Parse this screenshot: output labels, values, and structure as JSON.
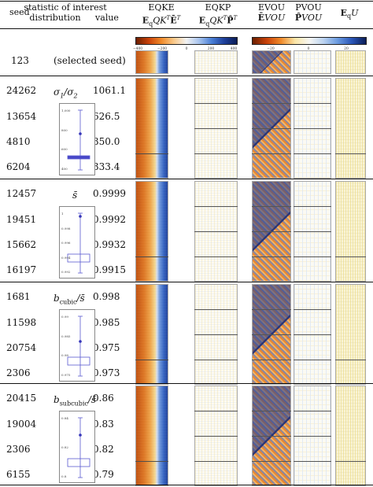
{
  "headers": {
    "seed": "seed",
    "statistic_line1": "statistic of interest",
    "statistic_line2": "distribution",
    "value": "value",
    "eqke_title": "EQKE",
    "eqke_formula": "E_q Q K^T Ē^T",
    "eqkp_title": "EQKP",
    "eqkp_formula": "E_q Q K^T P̂^T",
    "evou_title": "EVOU",
    "evou_formula": "Ē V O U",
    "pvou_title": "PVOU",
    "pvou_formula": "P̂ V O U",
    "equ_title": "E_q U"
  },
  "colorbars": {
    "eqke": {
      "ticks": [
        "−400",
        "−200",
        "0",
        "200",
        "400"
      ]
    },
    "evou": {
      "ticks": [
        "−20",
        "0",
        "20"
      ]
    }
  },
  "selected": {
    "seed": "123",
    "label": "(selected seed)"
  },
  "groups": [
    {
      "stat": "σ1/σ2",
      "stat_base": "σ",
      "stat_sub1": "1",
      "stat_mid": "/σ",
      "stat_sub2": "2",
      "violin_ticks": [
        "1,000",
        "800",
        "600",
        "400"
      ],
      "rows": [
        {
          "seed": "24262",
          "value": "1061.1"
        },
        {
          "seed": "13654",
          "value": "626.5"
        },
        {
          "seed": "4810",
          "value": "350.0"
        },
        {
          "seed": "6204",
          "value": "333.4"
        }
      ]
    },
    {
      "stat": "s̄",
      "violin_ticks": [
        "1",
        "0.998",
        "0.996",
        "0.994",
        "0.992"
      ],
      "rows": [
        {
          "seed": "12457",
          "value": "0.9999"
        },
        {
          "seed": "19451",
          "value": "0.9992"
        },
        {
          "seed": "15662",
          "value": "0.9932"
        },
        {
          "seed": "16197",
          "value": "0.9915"
        }
      ]
    },
    {
      "stat": "b_cubic/s̄",
      "stat_base": "b",
      "stat_sub": "cubic",
      "stat_tail": "/s̄",
      "violin_ticks": [
        "0.99",
        "0.985",
        "0.98",
        "0.975"
      ],
      "rows": [
        {
          "seed": "1681",
          "value": "0.998"
        },
        {
          "seed": "11598",
          "value": "0.985"
        },
        {
          "seed": "20754",
          "value": "0.975"
        },
        {
          "seed": "2306",
          "value": "0.973"
        }
      ]
    },
    {
      "stat": "b_subcubic/s̄",
      "stat_base": "b",
      "stat_sub": "subcubic",
      "stat_tail": "/s̄",
      "violin_ticks": [
        "0.84",
        "0.82",
        "0.8"
      ],
      "rows": [
        {
          "seed": "20415",
          "value": "0.86"
        },
        {
          "seed": "19004",
          "value": "0.83"
        },
        {
          "seed": "2306",
          "value": "0.82"
        },
        {
          "seed": "6155",
          "value": "0.79"
        }
      ]
    }
  ],
  "colors": {
    "orange": "#e07a1f",
    "blue": "#3a6fc8",
    "yellow_pale": "#fbf6d8",
    "rule": "#111111"
  }
}
